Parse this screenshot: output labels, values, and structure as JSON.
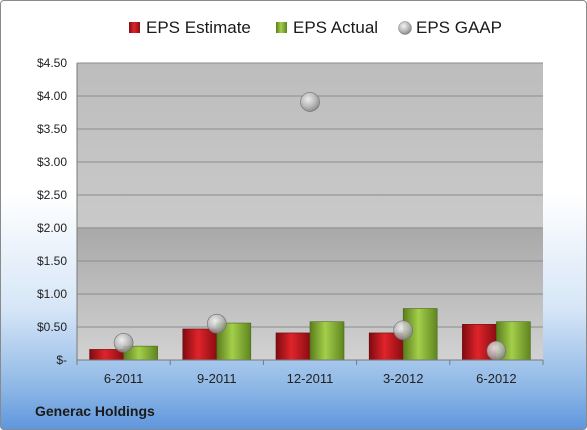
{
  "chart_data": {
    "type": "bar",
    "categories": [
      "6-2011",
      "9-2011",
      "12-2011",
      "3-2012",
      "6-2012"
    ],
    "series": [
      {
        "name": "EPS Estimate",
        "kind": "bar",
        "color": "#c0141c",
        "values": [
          0.16,
          0.47,
          0.41,
          0.41,
          0.54
        ]
      },
      {
        "name": "EPS Actual",
        "kind": "bar",
        "color": "#7faa2c",
        "values": [
          0.21,
          0.56,
          0.58,
          0.78,
          0.58
        ]
      },
      {
        "name": "EPS GAAP",
        "kind": "scatter",
        "color": "#b8b8b8",
        "values": [
          0.26,
          0.55,
          3.91,
          0.45,
          0.14
        ]
      }
    ],
    "yticks": [
      "$-",
      "$0.50",
      "$1.00",
      "$1.50",
      "$2.00",
      "$2.50",
      "$3.00",
      "$3.50",
      "$4.00",
      "$4.50"
    ],
    "ylim": [
      0,
      4.5
    ],
    "legend_position": "top",
    "grid": true
  },
  "company_label": "Generac Holdings"
}
